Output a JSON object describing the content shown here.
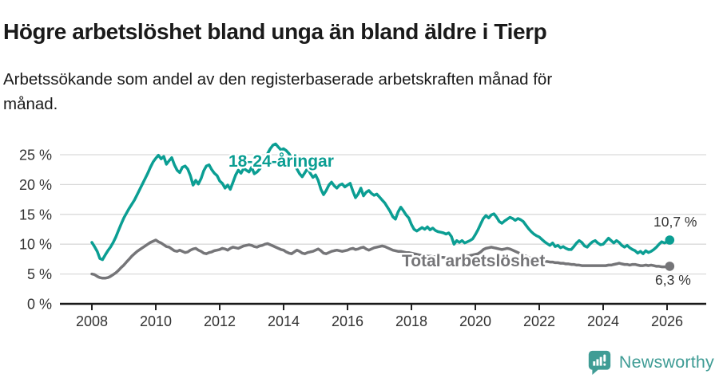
{
  "header": {
    "title": "Högre arbetslöshet bland unga än bland äldre i Tierp",
    "subtitle": "Arbetssökande som andel av den registerbaserade arbetskraften månad för månad."
  },
  "footer": {
    "brand": "Newsworthy"
  },
  "colors": {
    "young": "#0b9e93",
    "total": "#757578",
    "brand": "#3f9c95",
    "grid": "#d9d9d9",
    "axis": "#1a1a1a",
    "tick_text": "#333333"
  },
  "chart_data": {
    "type": "line",
    "title": "Högre arbetslöshet bland unga än bland äldre i Tierp",
    "subtitle": "Arbetssökande som andel av den registerbaserade arbetskraften månad för månad.",
    "frequency": "monthly",
    "x_start": "2008-01",
    "x_end": "2026-02",
    "ylim": [
      0,
      27
    ],
    "grid": true,
    "y_axis": {
      "ticks": [
        {
          "value": 0,
          "label": "0 %"
        },
        {
          "value": 5,
          "label": "5 %"
        },
        {
          "value": 10,
          "label": "10 %"
        },
        {
          "value": 15,
          "label": "15 %"
        },
        {
          "value": 20,
          "label": "20 %"
        },
        {
          "value": 25,
          "label": "25 %"
        }
      ]
    },
    "x_axis": {
      "start_year": 2008,
      "ticks": [
        2008,
        2010,
        2012,
        2014,
        2016,
        2018,
        2020,
        2022,
        2024,
        2026
      ]
    },
    "series": [
      {
        "name": "18-24-åringar",
        "color": "#0b9e93",
        "end_label": "10,7 %",
        "last_value": 10.7,
        "values": [
          10.3,
          9.6,
          8.8,
          7.6,
          7.4,
          8.2,
          8.9,
          9.5,
          10.3,
          11.2,
          12.3,
          13.4,
          14.4,
          15.2,
          16.0,
          16.7,
          17.4,
          18.3,
          19.2,
          20.1,
          21.0,
          21.9,
          22.9,
          23.8,
          24.4,
          24.9,
          24.3,
          24.7,
          23.4,
          24.0,
          24.5,
          23.3,
          22.4,
          22.0,
          22.9,
          23.1,
          22.6,
          21.5,
          19.9,
          20.7,
          20.1,
          21.0,
          22.3,
          23.1,
          23.3,
          22.5,
          21.9,
          21.5,
          20.6,
          20.2,
          19.4,
          19.9,
          19.2,
          20.4,
          21.6,
          22.4,
          21.9,
          22.7,
          22.4,
          22.1,
          22.9,
          21.8,
          22.1,
          22.6,
          23.2,
          24.1,
          25.2,
          26.0,
          26.6,
          26.8,
          26.3,
          25.8,
          26.0,
          25.7,
          25.2,
          24.4,
          23.5,
          22.6,
          21.8,
          21.3,
          22.0,
          22.7,
          21.9,
          21.2,
          21.6,
          20.7,
          19.2,
          18.3,
          19.0,
          19.9,
          20.4,
          19.8,
          19.4,
          19.9,
          20.1,
          19.6,
          19.9,
          20.2,
          18.9,
          17.8,
          18.4,
          19.4,
          18.1,
          18.7,
          19.0,
          18.5,
          18.2,
          18.4,
          17.9,
          17.4,
          16.9,
          16.2,
          15.5,
          14.6,
          14.2,
          15.4,
          16.2,
          15.6,
          14.9,
          14.4,
          13.3,
          12.5,
          12.2,
          12.5,
          12.8,
          12.5,
          12.9,
          12.4,
          12.7,
          12.3,
          12.1,
          12.0,
          11.9,
          11.7,
          11.9,
          11.3,
          10.0,
          10.6,
          10.3,
          10.6,
          10.2,
          10.4,
          10.6,
          10.9,
          11.6,
          12.4,
          13.4,
          14.3,
          14.8,
          14.4,
          14.9,
          15.1,
          14.5,
          13.8,
          13.5,
          13.9,
          14.2,
          14.5,
          14.3,
          14.0,
          14.3,
          14.1,
          13.8,
          13.2,
          12.6,
          12.1,
          11.7,
          11.4,
          11.2,
          10.8,
          10.4,
          10.1,
          9.8,
          10.2,
          9.6,
          9.8,
          9.4,
          9.6,
          9.3,
          9.1,
          9.1,
          9.6,
          10.2,
          10.6,
          10.3,
          9.7,
          9.5,
          10.0,
          10.4,
          10.6,
          10.2,
          9.9,
          10.0,
          10.5,
          11.0,
          10.6,
          10.2,
          10.6,
          10.3,
          9.8,
          9.5,
          9.8,
          9.4,
          9.1,
          8.9,
          8.5,
          8.8,
          8.4,
          8.9,
          8.6,
          8.8,
          9.1,
          9.5,
          10.0,
          10.4,
          10.2,
          10.4,
          10.7
        ]
      },
      {
        "name": "Total arbetslöshet",
        "color": "#757578",
        "end_label": "6,3 %",
        "last_value": 6.3,
        "values": [
          5.0,
          4.9,
          4.6,
          4.4,
          4.3,
          4.3,
          4.4,
          4.6,
          4.9,
          5.2,
          5.6,
          6.1,
          6.5,
          7.0,
          7.5,
          8.0,
          8.4,
          8.8,
          9.1,
          9.4,
          9.7,
          10.0,
          10.3,
          10.5,
          10.7,
          10.4,
          10.2,
          9.9,
          9.6,
          9.5,
          9.2,
          8.9,
          8.8,
          9.0,
          8.8,
          8.6,
          8.7,
          9.0,
          9.2,
          9.3,
          9.0,
          8.8,
          8.5,
          8.4,
          8.6,
          8.7,
          8.9,
          9.0,
          9.1,
          9.3,
          9.2,
          9.0,
          9.3,
          9.5,
          9.4,
          9.3,
          9.5,
          9.7,
          9.8,
          9.9,
          9.8,
          9.6,
          9.5,
          9.7,
          9.8,
          10.0,
          10.1,
          9.9,
          9.7,
          9.5,
          9.3,
          9.1,
          9.0,
          8.7,
          8.5,
          8.4,
          8.7,
          9.0,
          8.8,
          8.5,
          8.4,
          8.6,
          8.7,
          8.8,
          9.0,
          9.2,
          8.9,
          8.5,
          8.4,
          8.6,
          8.8,
          8.9,
          9.0,
          8.9,
          8.8,
          8.9,
          9.0,
          9.2,
          9.3,
          9.1,
          9.2,
          9.4,
          9.5,
          9.2,
          9.0,
          9.2,
          9.4,
          9.5,
          9.6,
          9.7,
          9.6,
          9.4,
          9.2,
          9.0,
          8.9,
          8.8,
          8.8,
          8.7,
          8.6,
          8.6,
          8.5,
          8.4,
          8.3,
          8.2,
          8.1,
          8.1,
          8.0,
          8.0,
          7.9,
          7.9,
          7.8,
          7.8,
          7.8,
          7.7,
          7.7,
          7.6,
          7.6,
          7.7,
          7.8,
          7.8,
          7.9,
          8.0,
          8.1,
          8.2,
          8.3,
          8.4,
          8.7,
          9.1,
          9.3,
          9.4,
          9.5,
          9.4,
          9.3,
          9.2,
          9.1,
          9.2,
          9.3,
          9.2,
          9.0,
          8.8,
          8.6,
          8.4,
          8.2,
          8.0,
          7.8,
          7.6,
          7.5,
          7.4,
          7.3,
          7.2,
          7.1,
          7.1,
          7.0,
          7.0,
          6.9,
          6.9,
          6.8,
          6.8,
          6.7,
          6.7,
          6.6,
          6.6,
          6.5,
          6.5,
          6.4,
          6.4,
          6.4,
          6.4,
          6.4,
          6.4,
          6.4,
          6.4,
          6.4,
          6.4,
          6.5,
          6.5,
          6.6,
          6.7,
          6.8,
          6.7,
          6.6,
          6.6,
          6.5,
          6.6,
          6.6,
          6.5,
          6.4,
          6.4,
          6.5,
          6.4,
          6.5,
          6.4,
          6.3,
          6.3,
          6.2,
          6.2,
          6.2,
          6.3
        ]
      }
    ]
  }
}
